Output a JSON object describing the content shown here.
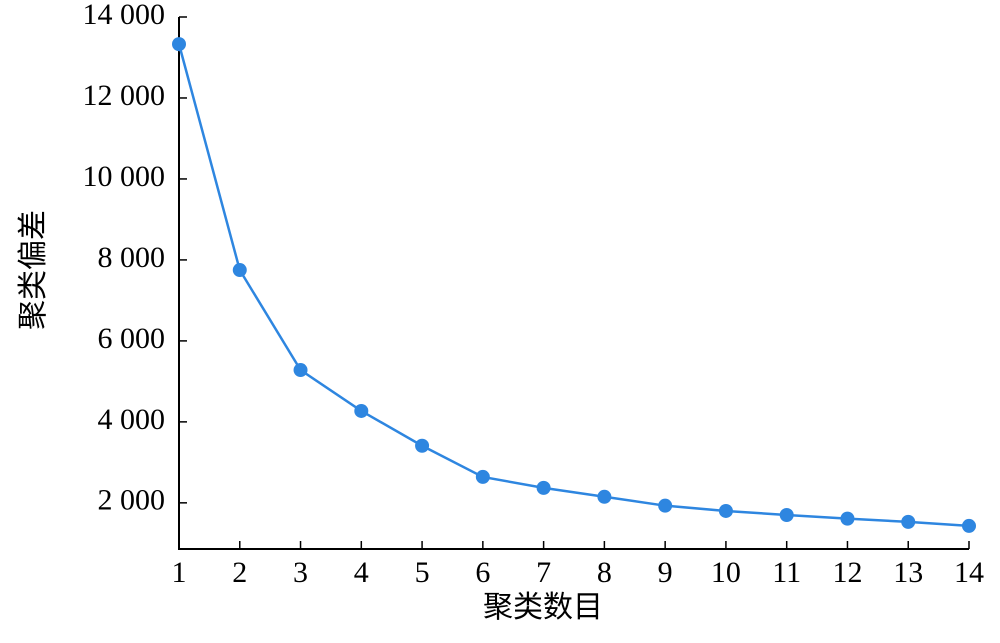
{
  "chart_data": {
    "type": "line",
    "x_label": "聚类数目",
    "y_label": "聚类偏差",
    "x": [
      1,
      2,
      3,
      4,
      5,
      6,
      7,
      8,
      9,
      10,
      11,
      12,
      13,
      14
    ],
    "series": [
      {
        "color": "#2e86e0",
        "values": [
          13330,
          7750,
          5280,
          4270,
          3410,
          2640,
          2370,
          2150,
          1930,
          1800,
          1700,
          1610,
          1530,
          1430
        ]
      }
    ],
    "xlim": [
      1,
      14
    ],
    "xticks": [
      1,
      2,
      3,
      4,
      5,
      6,
      7,
      8,
      9,
      10,
      11,
      12,
      13,
      14
    ],
    "ylim": [
      860,
      14000
    ],
    "yticks": [
      {
        "value": 2000,
        "label": "2 000"
      },
      {
        "value": 4000,
        "label": "4 000"
      },
      {
        "value": 6000,
        "label": "6 000"
      },
      {
        "value": 8000,
        "label": "8 000"
      },
      {
        "value": 10000,
        "label": "10 000"
      },
      {
        "value": 12000,
        "label": "12 000"
      },
      {
        "value": 14000,
        "label": "14 000"
      }
    ]
  }
}
